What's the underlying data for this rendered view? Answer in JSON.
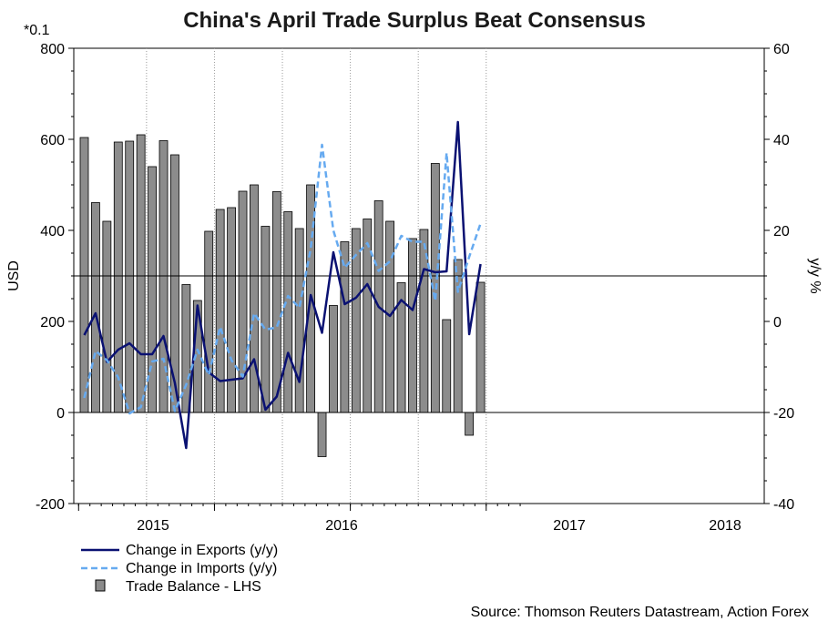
{
  "chart_data": {
    "type": "bar+line",
    "title": "China's April Trade Surplus Beat Consensus",
    "y_left_multiplier": "*0.1",
    "y_left_label": "USD",
    "y_right_label": "y/y %",
    "y_left_lim": [
      -200,
      800
    ],
    "y_left_ticks": [
      "800",
      "600",
      "400",
      "200",
      "0",
      "-200"
    ],
    "y_right_lim": [
      -40,
      60
    ],
    "y_right_ticks": [
      "60",
      "40",
      "20",
      "0",
      "-20",
      "-40"
    ],
    "x_year_labels": [
      "2015",
      "2016",
      "2017",
      "2018"
    ],
    "months": [
      "2015-01",
      "2015-02",
      "2015-03",
      "2015-04",
      "2015-05",
      "2015-06",
      "2015-07",
      "2015-08",
      "2015-09",
      "2015-10",
      "2015-11",
      "2015-12",
      "2016-01",
      "2016-02",
      "2016-03",
      "2016-04",
      "2016-05",
      "2016-06",
      "2016-07",
      "2016-08",
      "2016-09",
      "2016-10",
      "2016-11",
      "2016-12",
      "2017-01",
      "2017-02",
      "2017-03",
      "2017-04",
      "2017-05",
      "2017-06",
      "2017-07",
      "2017-08",
      "2017-09",
      "2017-10",
      "2017-11",
      "2017-12",
      "2018-01",
      "2018-02",
      "2018-03",
      "2018-04"
    ],
    "series": [
      {
        "name": "Change in Exports (y/y)",
        "axis": "right",
        "style": "solid",
        "color": "#0a1172",
        "values": [
          -3,
          1.8,
          -8.9,
          -6.2,
          -4.8,
          -7.2,
          -7.2,
          -3.2,
          -13.5,
          -27.8,
          3.5,
          -11.2,
          -13.1,
          -12.8,
          -12.5,
          -8.3,
          -19.4,
          -16.5,
          -6.9,
          -13.3,
          5.8,
          -2.5,
          15.2,
          3.8,
          5.2,
          8.2,
          3.2,
          1.2,
          4.7,
          2.5,
          11.5,
          10.8,
          11.0,
          43.8,
          -2.8,
          12.6,
          null,
          null,
          null,
          null
        ]
      },
      {
        "name": "Change in Imports (y/y)",
        "axis": "right",
        "style": "dashed",
        "color": "#66aaf0",
        "values": [
          -16.8,
          -6.5,
          -8.5,
          -12.3,
          -20.2,
          -18.8,
          -8.8,
          -8.2,
          -19.7,
          -13.9,
          -6.2,
          -11.8,
          -1.2,
          -8.5,
          -12.1,
          1.8,
          -1.8,
          -1.3,
          5.6,
          3.0,
          16.0,
          38.8,
          20.0,
          11.8,
          14.6,
          17.2,
          11.1,
          13.2,
          18.8,
          17.5,
          17.5,
          4.5,
          37.0,
          6.5,
          14.2,
          21.5,
          null,
          null,
          null,
          null
        ]
      },
      {
        "name": "Trade Balance - LHS",
        "axis": "left",
        "style": "bar",
        "color": "#8c8c8c",
        "values": [
          604,
          461,
          420,
          594,
          596,
          610,
          540,
          597,
          566,
          281,
          246,
          398,
          446,
          450,
          486,
          500,
          409,
          485,
          441,
          404,
          500,
          -97,
          235,
          375,
          404,
          425,
          465,
          420,
          285,
          382,
          402,
          547,
          204,
          336,
          -50,
          286,
          null,
          null,
          null,
          null
        ]
      }
    ],
    "legend": {
      "placement": "bottom-left",
      "items": [
        "Change in Exports (y/y)",
        "Change in Imports (y/y)",
        "Trade Balance - LHS"
      ]
    },
    "source": "Source: Thomson Reuters Datastream, Action Forex",
    "grid": "dotted vertical only",
    "colors": {
      "bar_fill": "#8c8c8c",
      "exports": "#0a1172",
      "imports": "#66aaf0"
    }
  }
}
